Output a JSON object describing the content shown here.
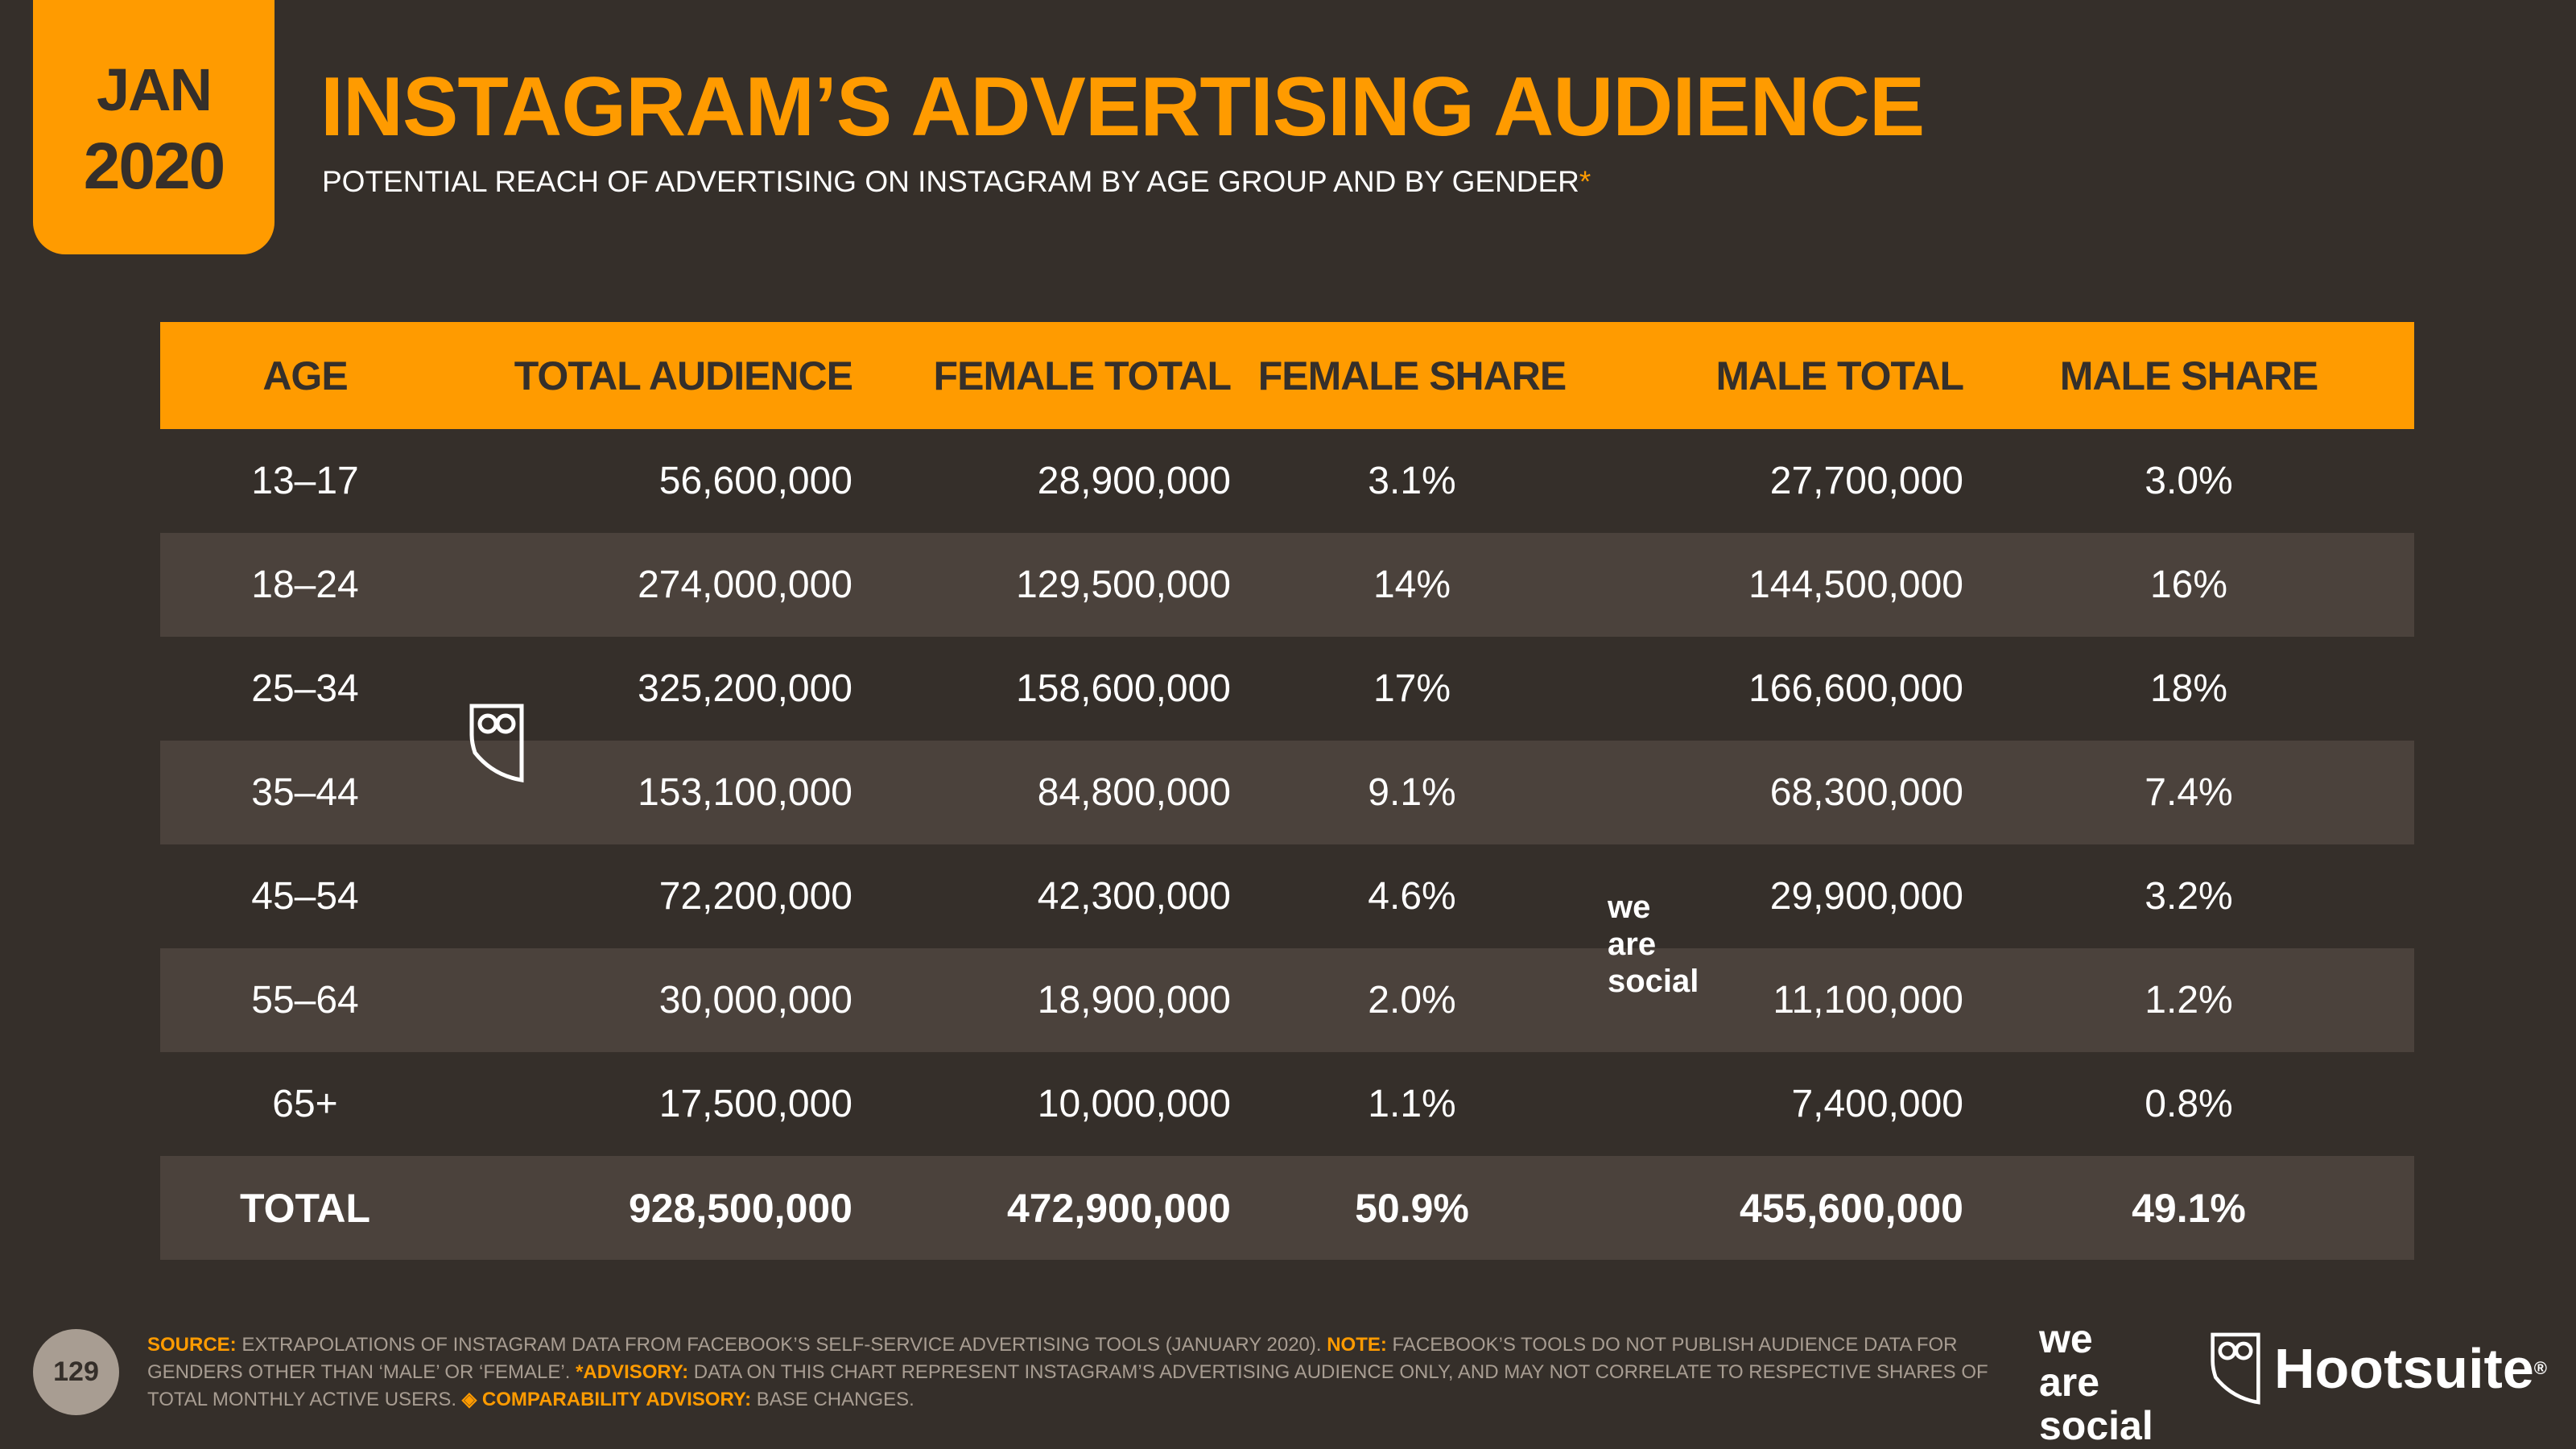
{
  "badge": {
    "month": "JAN",
    "year": "2020"
  },
  "title": "INSTAGRAM’S ADVERTISING AUDIENCE",
  "subtitle": "POTENTIAL REACH OF ADVERTISING ON INSTAGRAM BY AGE GROUP AND BY GENDER",
  "subtitle_marker": "*",
  "table": {
    "headers": [
      "AGE",
      "TOTAL AUDIENCE",
      "FEMALE TOTAL",
      "FEMALE SHARE",
      "MALE TOTAL",
      "MALE SHARE"
    ],
    "rows": [
      [
        "13–17",
        "56,600,000",
        "28,900,000",
        "3.1%",
        "27,700,000",
        "3.0%"
      ],
      [
        "18–24",
        "274,000,000",
        "129,500,000",
        "14%",
        "144,500,000",
        "16%"
      ],
      [
        "25–34",
        "325,200,000",
        "158,600,000",
        "17%",
        "166,600,000",
        "18%"
      ],
      [
        "35–44",
        "153,100,000",
        "84,800,000",
        "9.1%",
        "68,300,000",
        "7.4%"
      ],
      [
        "45–54",
        "72,200,000",
        "42,300,000",
        "4.6%",
        "29,900,000",
        "3.2%"
      ],
      [
        "55–64",
        "30,000,000",
        "18,900,000",
        "2.0%",
        "11,100,000",
        "1.2%"
      ],
      [
        "65+",
        "17,500,000",
        "10,000,000",
        "1.1%",
        "7,400,000",
        "0.8%"
      ]
    ],
    "total": [
      "TOTAL",
      "928,500,000",
      "472,900,000",
      "50.9%",
      "455,600,000",
      "49.1%"
    ]
  },
  "watermark": {
    "line1": "we",
    "line2": "are",
    "line3": "social"
  },
  "page_number": "129",
  "footer": {
    "source_label": "SOURCE:",
    "source_text": " EXTRAPOLATIONS OF INSTAGRAM DATA FROM FACEBOOK’S SELF-SERVICE ADVERTISING TOOLS (JANUARY 2020). ",
    "note_label": "NOTE:",
    "note_text": " FACEBOOK’S TOOLS DO NOT PUBLISH AUDIENCE DATA FOR GENDERS OTHER THAN ‘MALE’ OR ‘FEMALE’. ",
    "advisory_label": "*ADVISORY:",
    "advisory_text": " DATA ON THIS CHART REPRESENT INSTAGRAM’S ADVERTISING AUDIENCE ONLY, AND MAY NOT CORRELATE TO RESPECTIVE SHARES OF TOTAL MONTHLY ACTIVE USERS. ",
    "comparability_label": "◈ COMPARABILITY ADVISORY:",
    "comparability_text": " BASE CHANGES."
  },
  "logos": {
    "wearesocial": [
      "we",
      "are",
      "social"
    ],
    "hootsuite": "Hootsuite",
    "registered": "®"
  },
  "colors": {
    "background": "#352f2a",
    "accent": "#ff9b00",
    "row_alt": "#4b423c",
    "muted": "#a89d92"
  }
}
